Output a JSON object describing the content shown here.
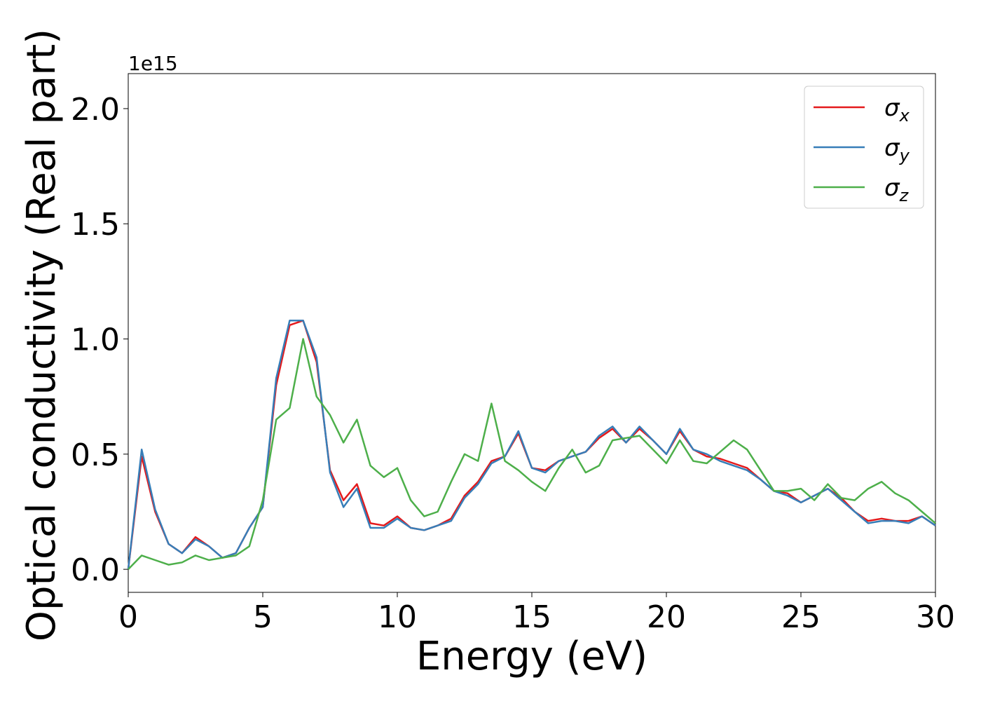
{
  "chart_data": {
    "type": "line",
    "xlabel": "Energy (eV)",
    "ylabel": "Optical conductivity (Real part)",
    "y_offset_label": "1e15",
    "x": [
      0,
      0.5,
      1,
      1.5,
      2,
      2.5,
      3,
      3.5,
      4,
      4.5,
      5,
      5.5,
      6,
      6.5,
      7,
      7.5,
      8,
      8.5,
      9,
      9.5,
      10,
      10.5,
      11,
      11.5,
      12,
      12.5,
      13,
      13.5,
      14,
      14.5,
      15,
      15.5,
      16,
      16.5,
      17,
      17.5,
      18,
      18.5,
      19,
      19.5,
      20,
      20.5,
      21,
      21.5,
      22,
      22.5,
      23,
      23.5,
      24,
      24.5,
      25,
      25.5,
      26,
      26.5,
      27,
      27.5,
      28,
      28.5,
      29,
      29.5,
      30
    ],
    "series": [
      {
        "name": "σx",
        "color": "#e41a1c",
        "values": [
          0,
          0.49,
          0.25,
          0.11,
          0.07,
          0.14,
          0.1,
          0.05,
          0.07,
          0.18,
          0.27,
          0.8,
          1.06,
          1.08,
          0.9,
          0.43,
          0.3,
          0.37,
          0.2,
          0.19,
          0.23,
          0.18,
          0.17,
          0.19,
          0.22,
          0.32,
          0.38,
          0.47,
          0.49,
          0.59,
          0.44,
          0.43,
          0.47,
          0.49,
          0.51,
          0.57,
          0.61,
          0.55,
          0.61,
          0.56,
          0.5,
          0.6,
          0.52,
          0.49,
          0.48,
          0.46,
          0.44,
          0.39,
          0.34,
          0.33,
          0.29,
          0.32,
          0.35,
          0.31,
          0.25,
          0.21,
          0.22,
          0.21,
          0.21,
          0.23,
          0.19
        ]
      },
      {
        "name": "σy",
        "color": "#377eb8",
        "values": [
          0,
          0.52,
          0.26,
          0.11,
          0.07,
          0.13,
          0.1,
          0.05,
          0.07,
          0.18,
          0.27,
          0.83,
          1.08,
          1.08,
          0.92,
          0.42,
          0.27,
          0.35,
          0.18,
          0.18,
          0.22,
          0.18,
          0.17,
          0.19,
          0.21,
          0.31,
          0.37,
          0.46,
          0.49,
          0.6,
          0.44,
          0.42,
          0.47,
          0.49,
          0.51,
          0.58,
          0.62,
          0.55,
          0.62,
          0.56,
          0.5,
          0.61,
          0.52,
          0.5,
          0.47,
          0.45,
          0.43,
          0.39,
          0.34,
          0.32,
          0.29,
          0.32,
          0.35,
          0.3,
          0.25,
          0.2,
          0.21,
          0.21,
          0.2,
          0.23,
          0.19
        ]
      },
      {
        "name": "σz",
        "color": "#4daf4a",
        "values": [
          0,
          0.06,
          0.04,
          0.02,
          0.03,
          0.06,
          0.04,
          0.05,
          0.06,
          0.1,
          0.3,
          0.65,
          0.7,
          1.0,
          0.75,
          0.67,
          0.55,
          0.65,
          0.45,
          0.4,
          0.44,
          0.3,
          0.23,
          0.25,
          0.38,
          0.5,
          0.47,
          0.72,
          0.47,
          0.43,
          0.38,
          0.34,
          0.44,
          0.52,
          0.42,
          0.45,
          0.56,
          0.57,
          0.58,
          0.52,
          0.46,
          0.56,
          0.47,
          0.46,
          0.51,
          0.56,
          0.52,
          0.43,
          0.34,
          0.34,
          0.35,
          0.3,
          0.37,
          0.31,
          0.3,
          0.35,
          0.38,
          0.33,
          0.3,
          0.25,
          0.2
        ]
      }
    ],
    "xlim": [
      0,
      30
    ],
    "xticks": [
      0,
      5,
      10,
      15,
      20,
      25,
      30
    ],
    "ylim": [
      -0.1,
      2.152
    ],
    "yticks": [
      {
        "value": 0,
        "label": "0.0"
      },
      0.5,
      {
        "value": 1,
        "label": "1.0"
      },
      1.5,
      {
        "value": 2,
        "label": "2.0"
      }
    ],
    "legend": "upper right",
    "grid": false
  }
}
